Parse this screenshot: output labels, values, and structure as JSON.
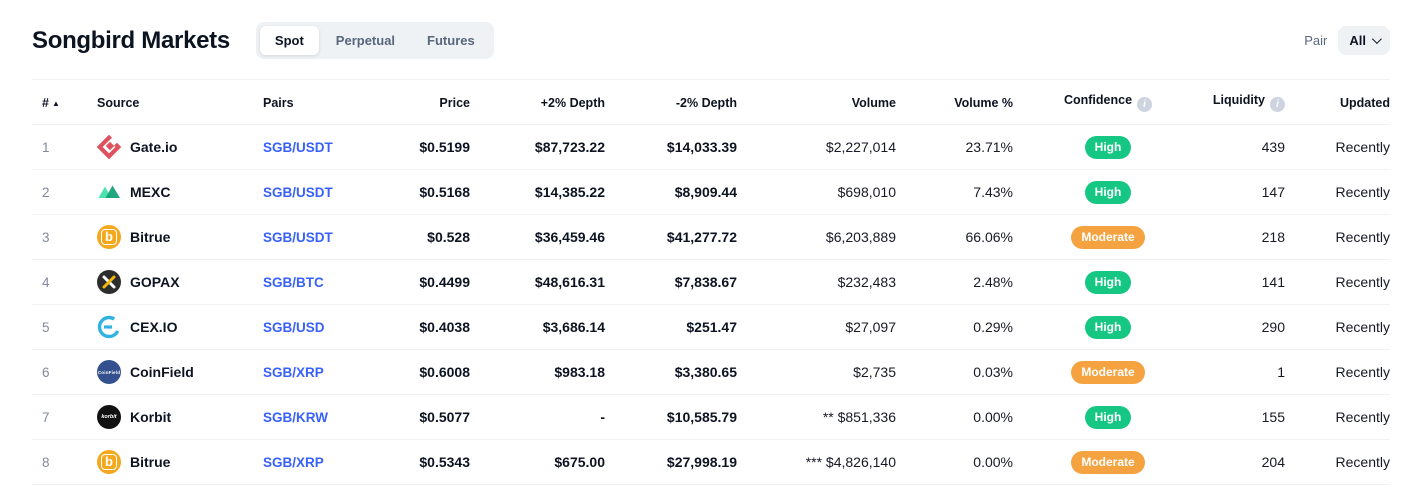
{
  "header": {
    "title": "Songbird Markets",
    "tabs": [
      {
        "label": "Spot",
        "active": true
      },
      {
        "label": "Perpetual",
        "active": false
      },
      {
        "label": "Futures",
        "active": false
      }
    ],
    "pair_filter": {
      "label": "Pair",
      "value": "All"
    }
  },
  "table": {
    "columns": [
      "#",
      "Source",
      "Pairs",
      "Price",
      "+2% Depth",
      "-2% Depth",
      "Volume",
      "Volume %",
      "Confidence",
      "Liquidity",
      "Updated"
    ],
    "sort_indicator_column": "#",
    "info_icon_columns": [
      "Confidence",
      "Liquidity"
    ],
    "rows": [
      {
        "rank": "1",
        "logo": "gateio",
        "source": "Gate.io",
        "pair": "SGB/USDT",
        "price": "$0.5199",
        "depth_plus": "$87,723.22",
        "depth_minus": "$14,033.39",
        "volume": "$2,227,014",
        "volume_pct": "23.71%",
        "confidence": "High",
        "liquidity": "439",
        "updated": "Recently"
      },
      {
        "rank": "2",
        "logo": "mexc",
        "source": "MEXC",
        "pair": "SGB/USDT",
        "price": "$0.5168",
        "depth_plus": "$14,385.22",
        "depth_minus": "$8,909.44",
        "volume": "$698,010",
        "volume_pct": "7.43%",
        "confidence": "High",
        "liquidity": "147",
        "updated": "Recently"
      },
      {
        "rank": "3",
        "logo": "bitrue",
        "source": "Bitrue",
        "pair": "SGB/USDT",
        "price": "$0.528",
        "depth_plus": "$36,459.46",
        "depth_minus": "$41,277.72",
        "volume": "$6,203,889",
        "volume_pct": "66.06%",
        "confidence": "Moderate",
        "liquidity": "218",
        "updated": "Recently"
      },
      {
        "rank": "4",
        "logo": "gopax",
        "source": "GOPAX",
        "pair": "SGB/BTC",
        "price": "$0.4499",
        "depth_plus": "$48,616.31",
        "depth_minus": "$7,838.67",
        "volume": "$232,483",
        "volume_pct": "2.48%",
        "confidence": "High",
        "liquidity": "141",
        "updated": "Recently"
      },
      {
        "rank": "5",
        "logo": "cexio",
        "source": "CEX.IO",
        "pair": "SGB/USD",
        "price": "$0.4038",
        "depth_plus": "$3,686.14",
        "depth_minus": "$251.47",
        "volume": "$27,097",
        "volume_pct": "0.29%",
        "confidence": "High",
        "liquidity": "290",
        "updated": "Recently"
      },
      {
        "rank": "6",
        "logo": "coinfield",
        "source": "CoinField",
        "pair": "SGB/XRP",
        "price": "$0.6008",
        "depth_plus": "$983.18",
        "depth_minus": "$3,380.65",
        "volume": "$2,735",
        "volume_pct": "0.03%",
        "confidence": "Moderate",
        "liquidity": "1",
        "updated": "Recently"
      },
      {
        "rank": "7",
        "logo": "korbit",
        "source": "Korbit",
        "pair": "SGB/KRW",
        "price": "$0.5077",
        "depth_plus": "-",
        "depth_minus": "$10,585.79",
        "volume": "** $851,336",
        "volume_pct": "0.00%",
        "confidence": "High",
        "liquidity": "155",
        "updated": "Recently"
      },
      {
        "rank": "8",
        "logo": "bitrue",
        "source": "Bitrue",
        "pair": "SGB/XRP",
        "price": "$0.5343",
        "depth_plus": "$675.00",
        "depth_minus": "$27,998.19",
        "volume": "*** $4,826,140",
        "volume_pct": "0.00%",
        "confidence": "Moderate",
        "liquidity": "204",
        "updated": "Recently"
      }
    ]
  },
  "colors": {
    "link_blue": "#3861fb",
    "confidence": {
      "High": "#16c784",
      "Moderate": "#f5a341"
    },
    "border": "#eff2f5",
    "muted_text": "#58667e",
    "dark_text": "#0d1421",
    "logo": {
      "gateio": "#e0515f",
      "mexc_light": "#4ce2b0",
      "mexc_dark": "#0d9e76",
      "bitrue": "#f4a81d",
      "gopax_bg": "#2d2d2d",
      "gopax_x": "#f0b90b",
      "cexio": "#2fb3e0",
      "coinfield_bg": "#35508f",
      "korbit_bg": "#111111"
    },
    "sort_arrow_glyph": "▲",
    "info_glyph": "i"
  }
}
